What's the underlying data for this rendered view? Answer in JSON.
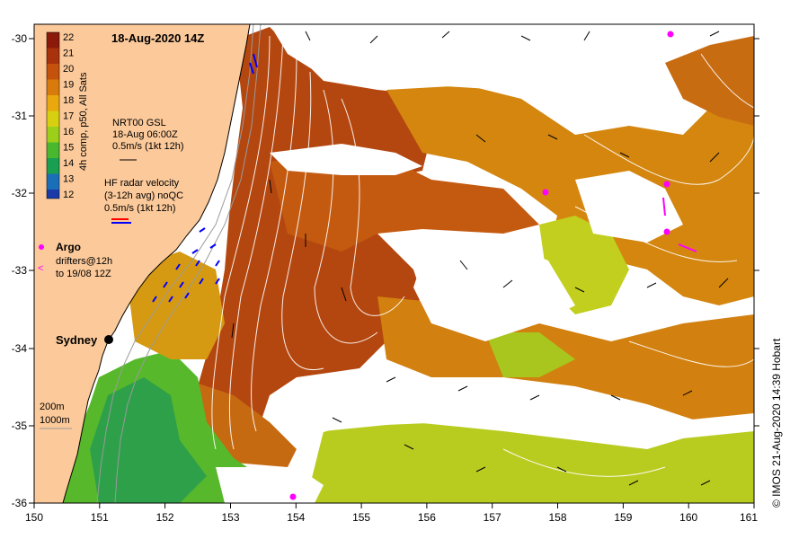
{
  "title": "18-Aug-2020 14Z",
  "credit": "© IMOS 21-Aug-2020 14:39 Hobart",
  "colorbar": {
    "label": "4h comp, p50, All Sats",
    "ticks": [
      "22",
      "21",
      "20",
      "19",
      "18",
      "17",
      "16",
      "15",
      "14",
      "13",
      "12"
    ],
    "colors": [
      "#8b1a0a",
      "#a8320c",
      "#c4520c",
      "#d97a0c",
      "#e8a80e",
      "#d6d010",
      "#9ccf1a",
      "#4ab82e",
      "#1a9e52",
      "#1a6fb8",
      "#1a3aa8"
    ]
  },
  "gsl": {
    "line1": "NRT00 GSL",
    "line2": "18-Aug 06:00Z",
    "line3": "0.5m/s (1kt 12h)"
  },
  "hf_radar": {
    "line1": "HF radar velocity",
    "line2": "(3-12h avg) noQC",
    "line3": "0.5m/s (1kt 12h)"
  },
  "argo": {
    "label": "Argo",
    "drifters_line1": "drifters@12h",
    "drifters_line2": "to 19/08 12Z"
  },
  "city": "Sydney",
  "depth": {
    "shallow": "200m",
    "deep": "1000m"
  },
  "x_ticks": [
    "150",
    "151",
    "152",
    "153",
    "154",
    "155",
    "156",
    "157",
    "158",
    "159",
    "160",
    "161"
  ],
  "y_ticks": [
    "-30",
    "-31",
    "-32",
    "-33",
    "-34",
    "-35",
    "-36"
  ],
  "colors": {
    "land": "#fbc99a",
    "sea_warm": "#b84a10",
    "sea_mid": "#d88a14",
    "sea_cool": "#c6d61c",
    "sea_cold": "#52b82c",
    "magenta": "#ff00ff",
    "hf_blue": "#0000ff"
  }
}
